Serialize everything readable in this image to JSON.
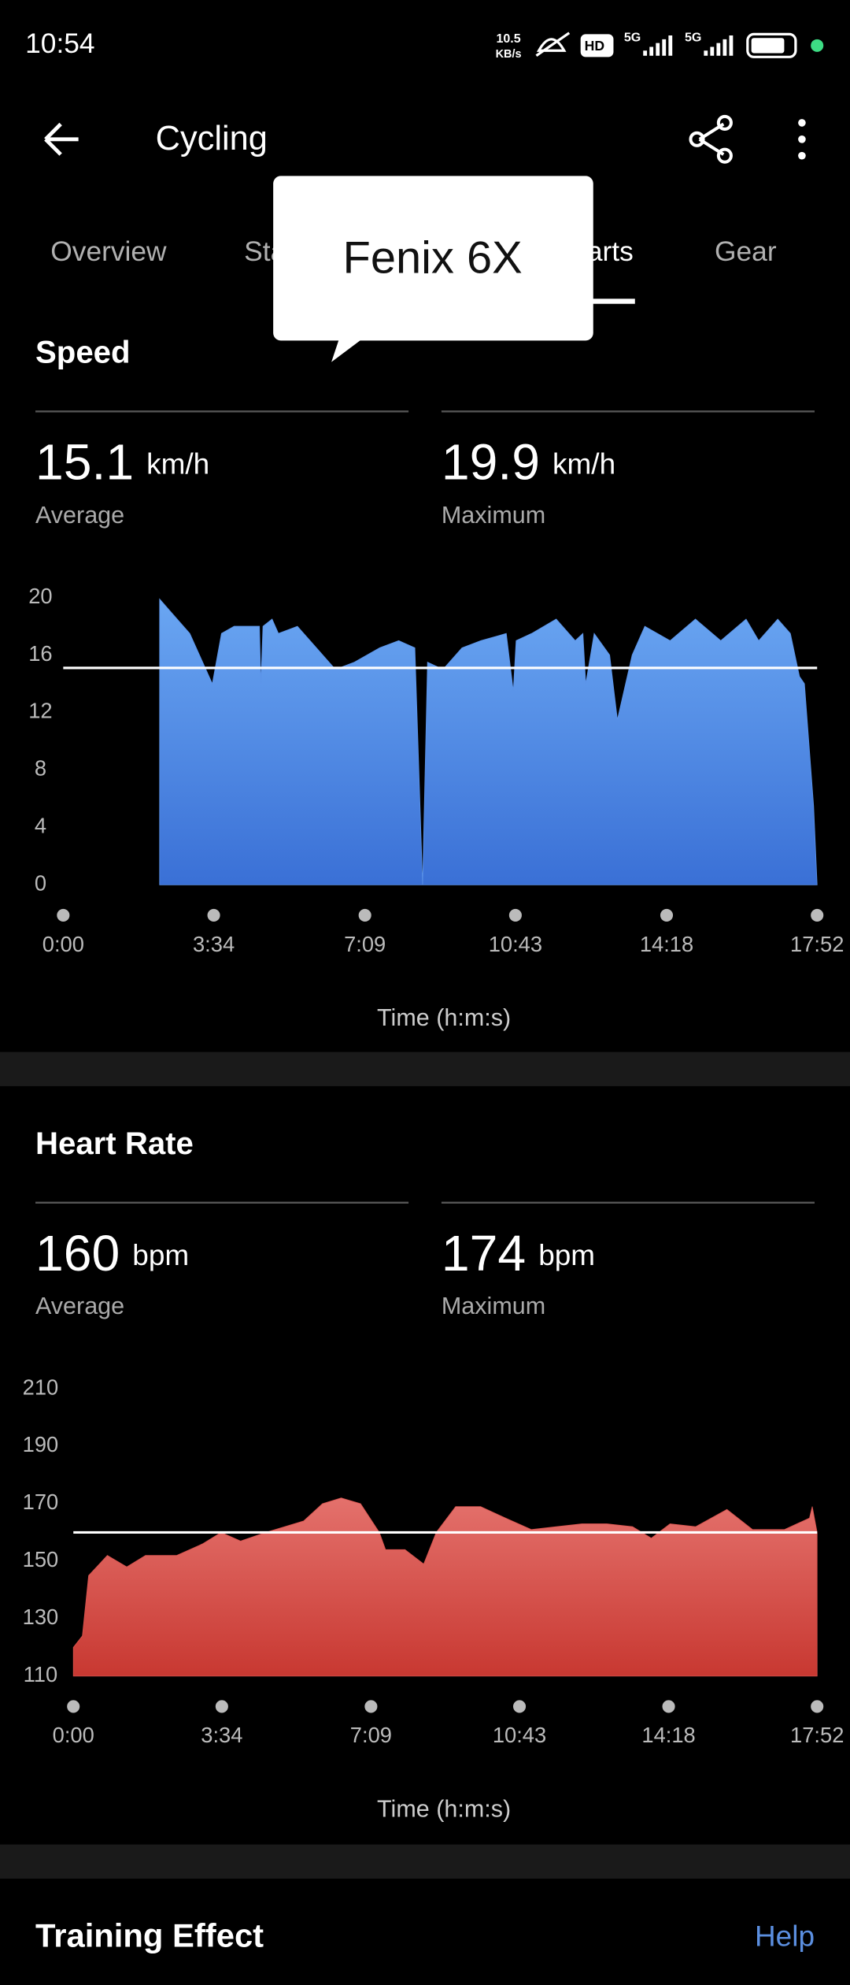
{
  "status_bar": {
    "time": "10:54",
    "net_speed": "10.5",
    "net_unit": "KB/s",
    "hd": "HD",
    "sim1": "5G",
    "sim2": "5G"
  },
  "header": {
    "title": "Cycling"
  },
  "tabs": [
    "Overview",
    "Stats",
    "Charts",
    "Gear"
  ],
  "tooltip": "Fenix 6X",
  "chart_data": [
    {
      "type": "area",
      "title": "Speed",
      "color": "#5b93e8",
      "stats": [
        {
          "value": 15.1,
          "unit": "km/h",
          "label": "Average"
        },
        {
          "value": 19.9,
          "unit": "km/h",
          "label": "Maximum"
        }
      ],
      "x": [
        137,
        153,
        180,
        212,
        225,
        243,
        279,
        281,
        284,
        297,
        306,
        333,
        360,
        387,
        414,
        450,
        477,
        500,
        511,
        518,
        540,
        567,
        594,
        630,
        640,
        644,
        666,
        701,
        728,
        739,
        743,
        755,
        777,
        788,
        809,
        827,
        863,
        899,
        935,
        971,
        989,
        1016,
        1034,
        1047,
        1054,
        1067,
        1072
      ],
      "values": [
        19.9,
        19,
        17.5,
        14,
        17.5,
        18,
        18,
        14,
        18,
        18.5,
        17.5,
        18,
        16.5,
        15,
        15.5,
        16.5,
        17,
        16.5,
        0,
        15.5,
        15,
        16.5,
        17,
        17.5,
        13.5,
        17,
        17.5,
        18.5,
        17,
        17.5,
        14,
        17.5,
        16,
        11.5,
        16,
        18,
        17,
        18.5,
        17,
        18.5,
        17,
        18.5,
        17.5,
        14.5,
        14,
        5.5,
        0
      ],
      "xlim": [
        0,
        1072
      ],
      "xticks": [
        {
          "value": 0,
          "label": "0:00"
        },
        {
          "value": 214,
          "label": "3:34"
        },
        {
          "value": 429,
          "label": "7:09"
        },
        {
          "value": 643,
          "label": "10:43"
        },
        {
          "value": 858,
          "label": "14:18"
        },
        {
          "value": 1072,
          "label": "17:52"
        }
      ],
      "ylim": [
        0,
        20
      ],
      "yticks": [
        0,
        4,
        8,
        12,
        16,
        20
      ],
      "xlabel": "Time (h:m:s)"
    },
    {
      "type": "area",
      "title": "Heart Rate",
      "color": "#d9534f",
      "stats": [
        {
          "value": 160,
          "unit": "bpm",
          "label": "Average"
        },
        {
          "value": 174,
          "unit": "bpm",
          "label": "Maximum"
        }
      ],
      "x": [
        0,
        13,
        22,
        49,
        77,
        104,
        149,
        186,
        213,
        241,
        277,
        332,
        359,
        386,
        414,
        441,
        450,
        478,
        505,
        523,
        551,
        587,
        623,
        660,
        696,
        733,
        769,
        806,
        833,
        860,
        897,
        942,
        979,
        1025,
        1061,
        1065,
        1072
      ],
      "values": [
        120,
        124,
        145,
        152,
        148,
        152,
        152,
        156,
        160,
        157,
        160,
        164,
        170,
        172,
        170,
        160,
        154,
        154,
        149,
        160,
        169,
        169,
        165,
        161,
        162,
        163,
        163,
        162,
        158,
        163,
        162,
        168,
        161,
        161,
        165,
        169,
        160
      ],
      "xlim": [
        0,
        1072
      ],
      "xticks": [
        {
          "value": 0,
          "label": "0:00"
        },
        {
          "value": 214,
          "label": "3:34"
        },
        {
          "value": 429,
          "label": "7:09"
        },
        {
          "value": 643,
          "label": "10:43"
        },
        {
          "value": 858,
          "label": "14:18"
        },
        {
          "value": 1072,
          "label": "17:52"
        }
      ],
      "ylim": [
        110,
        210
      ],
      "yticks": [
        110,
        130,
        150,
        170,
        190,
        210
      ],
      "xlabel": "Time (h:m:s)"
    }
  ],
  "footer": {
    "title": "Training Effect",
    "help": "Help"
  }
}
